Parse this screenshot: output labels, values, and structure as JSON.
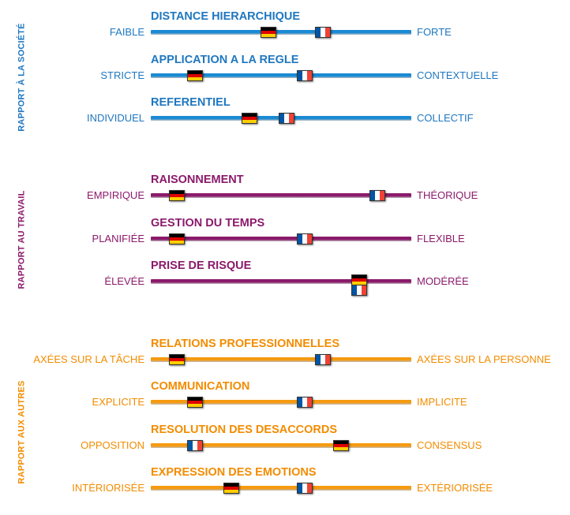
{
  "sections": [
    {
      "label": "RAPPORT À LA SOCIÉTÉ",
      "color": "#1f77c0",
      "bar_color": "#1a8ad4",
      "dimensions": [
        {
          "title": "DISTANCE HIERARCHIQUE",
          "left": "FAIBLE",
          "right": "FORTE",
          "de": 0.45,
          "fr": 0.66
        },
        {
          "title": "APPLICATION A LA REGLE",
          "left": "STRICTE",
          "right": "CONTEXTUELLE",
          "de": 0.17,
          "fr": 0.59
        },
        {
          "title": "REFERENTIEL",
          "left": "INDIVIDUEL",
          "right": "COLLECTIF",
          "de": 0.38,
          "fr": 0.52
        }
      ]
    },
    {
      "label": "RAPPORT AU TRAVAIL",
      "color": "#8b1a6b",
      "bar_color": "#8b1a6b",
      "dimensions": [
        {
          "title": "RAISONNEMENT",
          "left": "EMPIRIQUE",
          "right": "THÉORIQUE",
          "de": 0.1,
          "fr": 0.87
        },
        {
          "title": "GESTION DU TEMPS",
          "left": "PLANIFIÉE",
          "right": "FLEXIBLE",
          "de": 0.1,
          "fr": 0.59
        },
        {
          "title": "PRISE DE RISQUE",
          "left": "ÉLEVÉE",
          "right": "MODÉRÉE",
          "de": 0.8,
          "fr": 0.8
        }
      ]
    },
    {
      "label": "RAPPORT AUX AUTRES",
      "color": "#f28c00",
      "bar_color": "#f59a10",
      "dimensions": [
        {
          "title": "RELATIONS PROFESSIONNELLES",
          "left": "AXÉES SUR LA TÂCHE",
          "right": "AXÉES SUR LA PERSONNE",
          "de": 0.1,
          "fr": 0.66
        },
        {
          "title": "COMMUNICATION",
          "left": "EXPLICITE",
          "right": "IMPLICITE",
          "de": 0.17,
          "fr": 0.59
        },
        {
          "title": "RESOLUTION DES DESACCORDS",
          "left": "OPPOSITION",
          "right": "CONSENSUS",
          "de": 0.73,
          "fr": 0.17
        },
        {
          "title": "EXPRESSION DES EMOTIONS",
          "left": "INTÉRIORISÉE",
          "right": "EXTÉRIORISÉE",
          "de": 0.31,
          "fr": 0.59
        }
      ]
    }
  ]
}
